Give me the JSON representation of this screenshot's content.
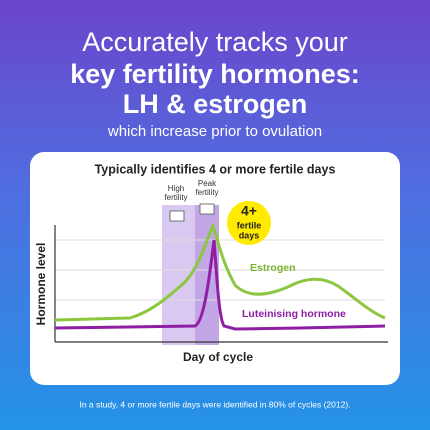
{
  "header": {
    "line1": "Accurately tracks your",
    "line2": "key fertility hormones:",
    "line3": "LH & estrogen",
    "subtitle": "which increase prior to ovulation"
  },
  "card": {
    "title": "Typically identifies 4 or more fertile days",
    "high_fertility": [
      "High",
      "fertility"
    ],
    "peak_fertility": [
      "Peak",
      "fertility"
    ],
    "badge": {
      "number": "4+",
      "text": [
        "fertile",
        "days"
      ]
    },
    "y_axis_label": "Hormone level",
    "x_axis_label": "Day of cycle",
    "estrogen_label": "Estrogen",
    "lh_label": "Luteinising hormone"
  },
  "footnote": "In a study, 4 or more fertile days were identified in 80% of cycles (2012)."
}
